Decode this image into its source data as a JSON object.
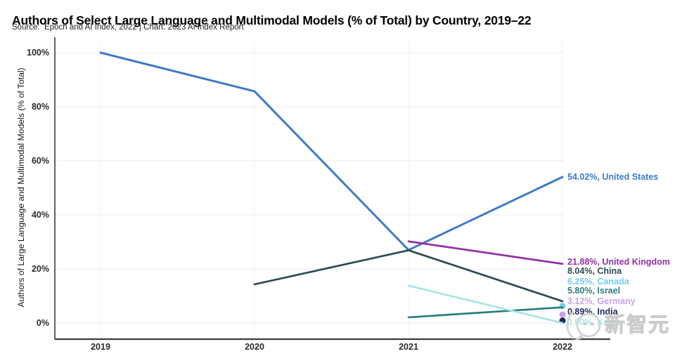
{
  "page": {
    "watermark_text": "新智元"
  },
  "chart_data": {
    "type": "line",
    "title": "Authors of Select Large Language and Multimodal Models (% of Total) by Country, 2019–22",
    "source": "Source:  Epoch and AI Index, 2022 | Chart: 2023 AI Index Report",
    "ylabel": "Authors of Large Language and Multimodal Models (% of Total)",
    "xlabel": "",
    "x_values": [
      2019,
      2020,
      2021,
      2022
    ],
    "x_ticks": [
      "2019",
      "2020",
      "2021",
      "2022"
    ],
    "y_tick_values": [
      0,
      20,
      40,
      60,
      80,
      100
    ],
    "y_ticks": [
      "0%",
      "20%",
      "40%",
      "60%",
      "80%",
      "100%"
    ],
    "xlim": [
      2019,
      2022
    ],
    "ylim": [
      0,
      100
    ],
    "grid": true,
    "legend_position": "end-of-line labels in right margin",
    "series": [
      {
        "name": "United States",
        "color": "#3e7bc6",
        "end_label": "54.02%, United States",
        "points": [
          [
            2019,
            100
          ],
          [
            2020,
            85.7
          ],
          [
            2021,
            27.0
          ],
          [
            2022,
            54.02
          ]
        ]
      },
      {
        "name": "United Kingdom",
        "color": "#9130a3",
        "end_label": "21.88%, United Kingdom",
        "points": [
          [
            2021,
            30.2
          ],
          [
            2022,
            21.88
          ]
        ]
      },
      {
        "name": "China",
        "color": "#2c4a54",
        "end_label": "8.04%, China",
        "points": [
          [
            2020,
            14.3
          ],
          [
            2021,
            26.9
          ],
          [
            2022,
            8.04
          ]
        ]
      },
      {
        "name": "Canada",
        "color": "#73ccf2",
        "end_label": "6.25%, Canada",
        "points": [
          [
            2022,
            6.25
          ]
        ]
      },
      {
        "name": "Israel",
        "color": "#2a7d7b",
        "end_label": "5.80%, Israel",
        "points": [
          [
            2021,
            2.1
          ],
          [
            2022,
            5.8
          ]
        ]
      },
      {
        "name": "Germany",
        "color": "#c9a2ea",
        "end_label": "3.12%, Germany",
        "points": [
          [
            2022,
            3.12
          ]
        ]
      },
      {
        "name": "India",
        "color": "#20295c",
        "end_label": "0.89%, India",
        "points": [
          [
            2022,
            0.89
          ]
        ]
      },
      {
        "name": "Korea",
        "color": "#a8e4e4",
        "end_label": "0.00%, Korea",
        "points": [
          [
            2021,
            13.8
          ],
          [
            2022,
            0.0
          ]
        ]
      }
    ]
  }
}
